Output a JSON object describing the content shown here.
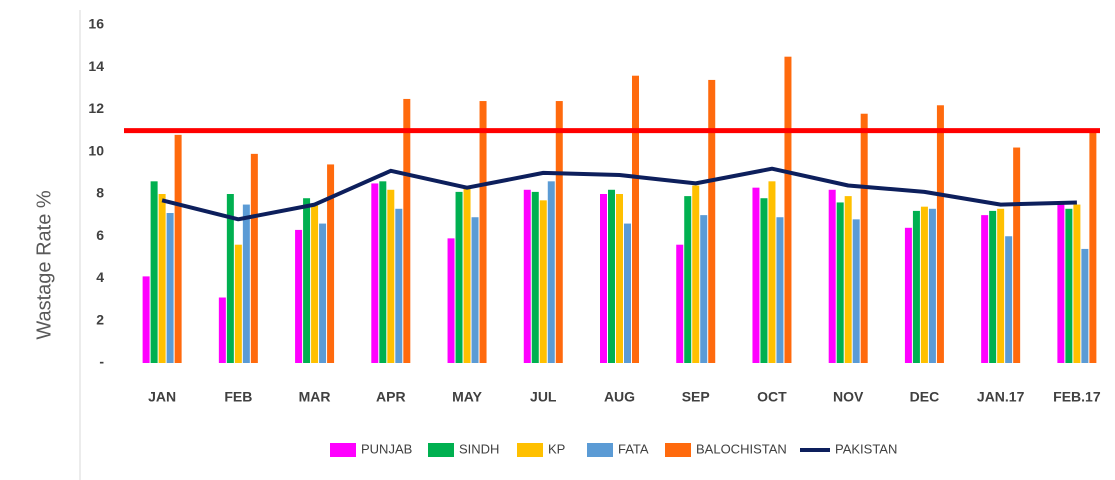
{
  "chart_data": {
    "type": "bar",
    "ylabel": "Wastage Rate %",
    "categories": [
      "JAN",
      "FEB",
      "MAR",
      "APR",
      "MAY",
      "JUL",
      "AUG",
      "SEP",
      "OCT",
      "NOV",
      "DEC",
      "JAN.17",
      "FEB.17"
    ],
    "ylim": [
      0,
      16
    ],
    "yticks": [
      {
        "value": 0,
        "label": "-"
      },
      2,
      4,
      6,
      8,
      10,
      12,
      14,
      16
    ],
    "reference_line": 11,
    "reference_color": "#ff0000",
    "series": [
      {
        "name": "PUNJAB",
        "color": "#ff00ff",
        "values": [
          4.1,
          3.1,
          6.3,
          8.5,
          5.9,
          8.2,
          8.0,
          5.6,
          8.3,
          8.2,
          6.4,
          7.0,
          7.5
        ]
      },
      {
        "name": "SINDH",
        "color": "#00b050",
        "values": [
          8.6,
          8.0,
          7.8,
          8.6,
          8.1,
          8.1,
          8.2,
          7.9,
          7.8,
          7.6,
          7.2,
          7.2,
          7.3
        ]
      },
      {
        "name": "KP",
        "color": "#ffc000",
        "values": [
          8.0,
          5.6,
          7.5,
          8.2,
          8.3,
          7.7,
          8.0,
          8.4,
          8.6,
          7.9,
          7.4,
          7.3,
          7.5
        ]
      },
      {
        "name": "FATA",
        "color": "#5b9bd5",
        "values": [
          7.1,
          7.5,
          6.6,
          7.3,
          6.9,
          8.6,
          6.6,
          7.0,
          6.9,
          6.8,
          7.3,
          6.0,
          5.4
        ]
      },
      {
        "name": "BALOCHISTAN",
        "color": "#ff6a0d",
        "values": [
          10.8,
          9.9,
          9.4,
          12.5,
          12.4,
          12.4,
          13.6,
          13.4,
          14.5,
          11.8,
          12.2,
          10.2,
          11.0
        ]
      },
      {
        "name": "PAKISTAN",
        "color": "#0d1f5c",
        "type": "line",
        "values": [
          7.7,
          6.8,
          7.5,
          9.1,
          8.3,
          9.0,
          8.9,
          8.5,
          9.2,
          8.4,
          8.1,
          7.5,
          7.6
        ]
      }
    ]
  }
}
